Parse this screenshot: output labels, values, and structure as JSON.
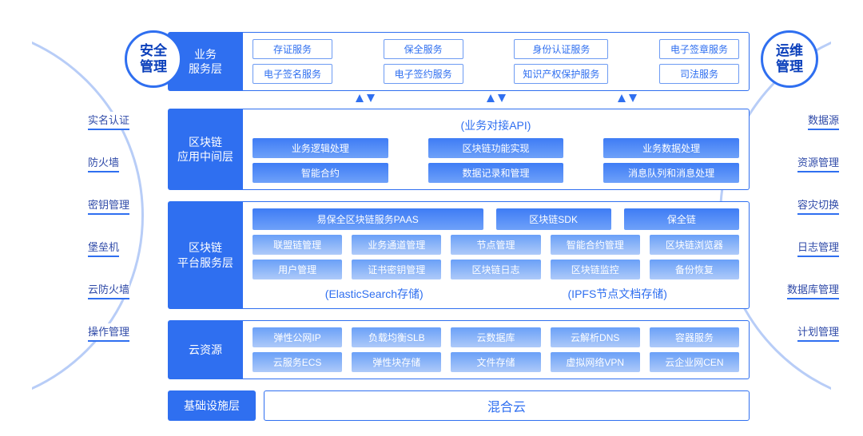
{
  "colors": {
    "primary": "#2f6ff0",
    "primary_light": "#6d9bf3",
    "arc": "#b8cdf7",
    "grad_top": "#3e7cf5",
    "grad_bottom": "#6fa1f9",
    "light_top": "#6aa0f8",
    "light_bottom": "#aecaf9",
    "bg": "#ffffff",
    "text_blue": "#0a3fbb"
  },
  "left_badge": "安全\n管理",
  "right_badge": "运维\n管理",
  "left_items": [
    "实名认证",
    "防火墙",
    "密钥管理",
    "堡垒机",
    "云防火墙",
    "操作管理"
  ],
  "right_items": [
    "数据源",
    "资源管理",
    "容灾切换",
    "日志管理",
    "数据库管理",
    "计划管理"
  ],
  "layer_service": {
    "label": "业务\n服务层",
    "cols": [
      [
        "存证服务",
        "电子签名服务"
      ],
      [
        "保全服务",
        "电子签约服务"
      ],
      [
        "身份认证服务",
        "知识产权保护服务"
      ],
      [
        "电子签章服务",
        "司法服务"
      ]
    ]
  },
  "layer_middleware": {
    "label": "区块链\n应用中间层",
    "heading": "(业务对接API)",
    "row1": [
      "业务逻辑处理",
      "区块链功能实现",
      "业务数据处理"
    ],
    "row2": [
      "智能合约",
      "数据记录和管理",
      "消息队列和消息处理"
    ]
  },
  "layer_platform": {
    "label": "区块链\n平台服务层",
    "top": [
      "易保全区块链服务PAAS",
      "区块链SDK",
      "保全链"
    ],
    "mid1": [
      "联盟链管理",
      "业务通道管理",
      "节点管理",
      "智能合约管理",
      "区块链浏览器"
    ],
    "mid2": [
      "用户管理",
      "证书密钥管理",
      "区块链日志",
      "区块链监控",
      "备份恢复"
    ],
    "bottom_labels": [
      "(ElasticSearch存储)",
      "(IPFS节点文档存储)"
    ]
  },
  "layer_cloud": {
    "label": "云资源",
    "row1": [
      "弹性公网IP",
      "负载均衡SLB",
      "云数据库",
      "云解析DNS",
      "容器服务"
    ],
    "row2": [
      "云服务ECS",
      "弹性块存储",
      "文件存储",
      "虚拟网络VPN",
      "云企业网CEN"
    ]
  },
  "layer_infra": {
    "label": "基础设施层",
    "body": "混合云"
  }
}
